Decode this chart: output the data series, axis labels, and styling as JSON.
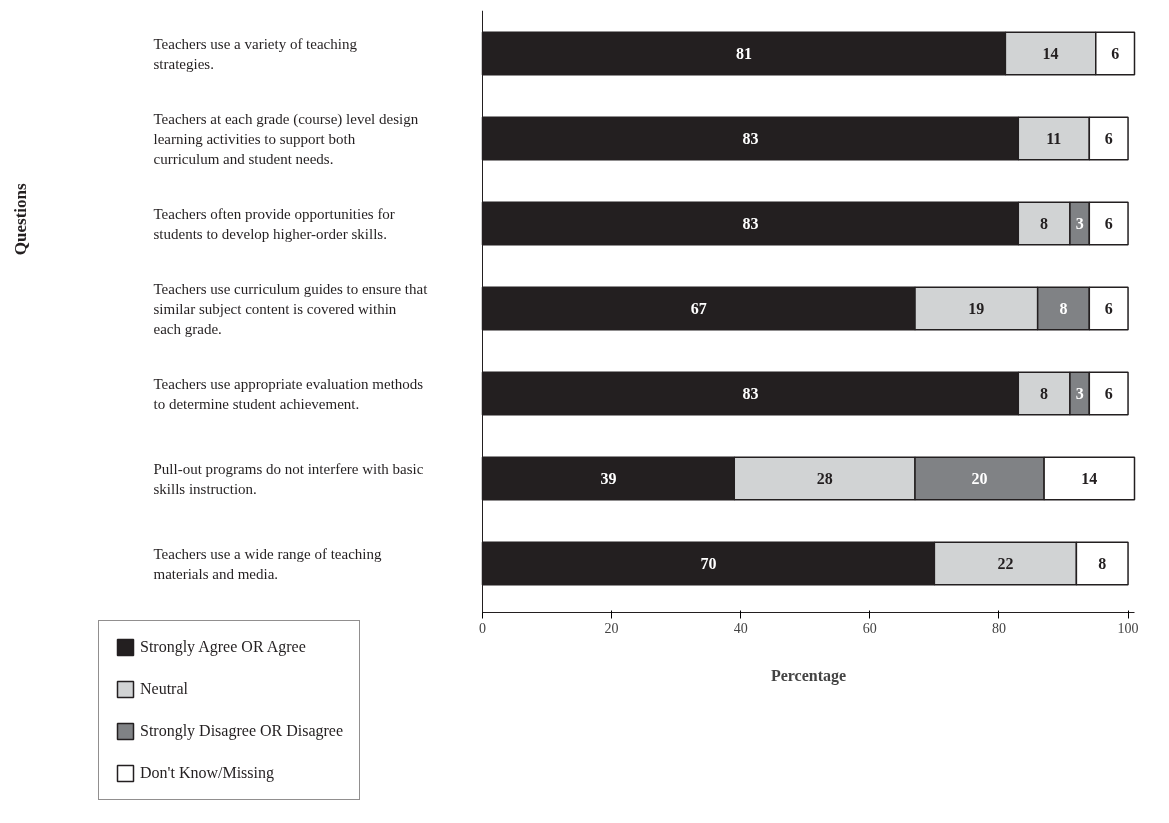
{
  "chart_data": {
    "type": "bar",
    "orientation": "horizontal",
    "stacked": true,
    "categories": [
      "Teachers use a variety of teaching strategies.",
      "Teachers at each grade (course) level design learning activities to support both curriculum and student needs.",
      "Teachers often provide opportunities for students to develop higher-order skills.",
      "Teachers use curriculum guides to ensure that similar subject content is covered within each grade.",
      "Teachers use appropriate evaluation methods to determine student achievement.",
      "Pull-out programs do not interfere with basic skills instruction.",
      "Teachers use a wide range of teaching materials and media."
    ],
    "series": [
      {
        "name": "Strongly Agree OR Agree",
        "color": "#231f20",
        "values": [
          81,
          83,
          83,
          67,
          83,
          39,
          70
        ],
        "value_labels": [
          "81",
          "83",
          "83",
          "67",
          "83",
          "39",
          "70"
        ]
      },
      {
        "name": "Neutral",
        "color": "#d1d3d4",
        "values": [
          14,
          11,
          8,
          19,
          8,
          28,
          22
        ],
        "value_labels": [
          "14",
          "11",
          "8",
          "19",
          "8",
          "28",
          "22"
        ]
      },
      {
        "name": "Strongly Disagree OR Disagree",
        "color": "#808285",
        "values": [
          null,
          null,
          3,
          8,
          3,
          20,
          null
        ],
        "value_labels": [
          null,
          null,
          "3",
          "8",
          "3",
          "20",
          null
        ]
      },
      {
        "name": "Don't Know/Missing",
        "color": "#ffffff",
        "values": [
          6,
          6,
          6,
          6,
          6,
          14,
          8
        ],
        "value_labels": [
          "6",
          "6",
          "6",
          "6",
          "6",
          "14",
          "8"
        ]
      }
    ],
    "xlim": [
      0,
      101
    ],
    "xticks": [
      0,
      20,
      40,
      60,
      80,
      100
    ],
    "xlabel": "Percentage",
    "annotations": [
      "Questions"
    ],
    "grid": false,
    "legend": "bottom left"
  }
}
